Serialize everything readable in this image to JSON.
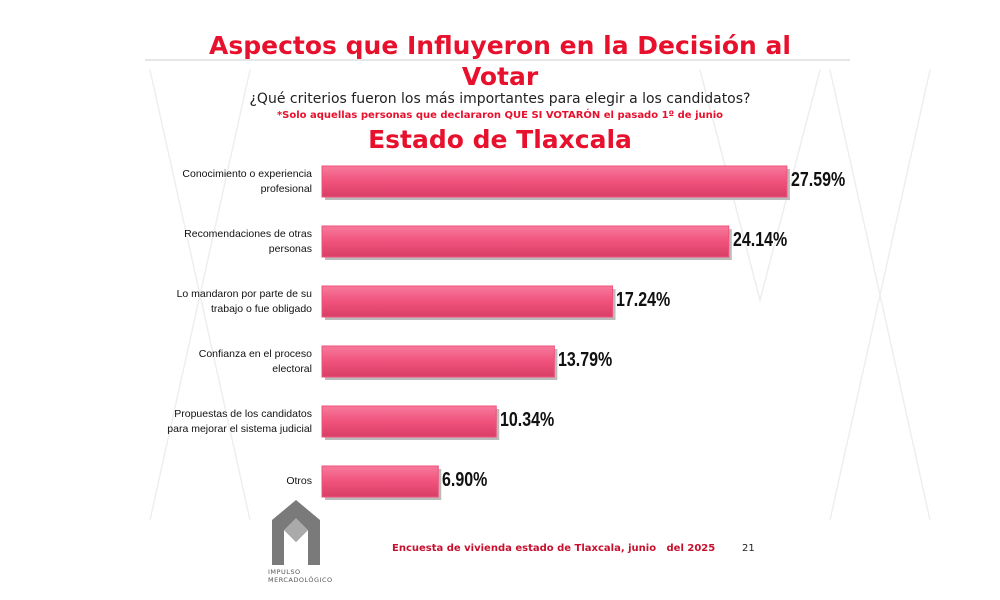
{
  "chart_data": {
    "type": "barh",
    "title": "Aspectos que Influyeron en la Decisión al Votar",
    "subtitle": "¿Qué criterios fueron los más importantes para elegir a los candidatos?",
    "note": "*Solo aquellas personas que declararon QUE SI VOTARÓN el pasado 1º de junio",
    "region": "Estado de Tlaxcala",
    "categories": [
      "Conocimiento o experiencia profesional",
      "Recomendaciones de otras personas",
      "Lo mandaron por parte de su trabajo o fue obligado",
      "Confianza en el proceso electoral",
      "Propuestas de los candidatos para mejorar el sistema judicial",
      "Otros"
    ],
    "values": [
      27.59,
      24.14,
      17.24,
      13.79,
      10.34,
      6.9
    ],
    "value_labels": [
      "27.59%",
      "24.14%",
      "17.24%",
      "13.79%",
      "10.34%",
      "6.90%"
    ],
    "color": "#f0527c",
    "footer": "Encuesta de vivienda estado de Tlaxcala, junio   del 2025",
    "page_number": "21",
    "logo_text": "IMPULSO MERCADOLÓGICO"
  }
}
